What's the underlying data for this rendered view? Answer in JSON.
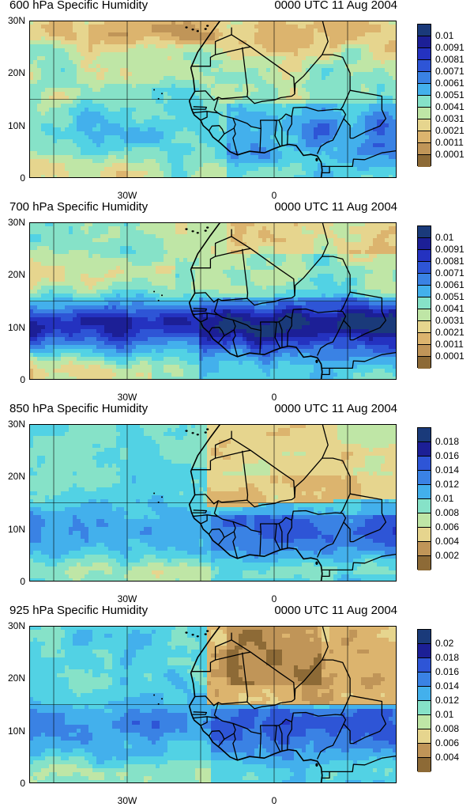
{
  "panels": [
    {
      "title": "600 hPa Specific Humidity",
      "time": "0000 UTC 11 Aug 2004",
      "ylabels": [
        "30N",
        "20N",
        "10N",
        "0"
      ],
      "xlabels": [
        "30W",
        "0"
      ],
      "colorbar": [
        "0.01",
        "0.0091",
        "0.0081",
        "0.0071",
        "0.0061",
        "0.0051",
        "0.0041",
        "0.0031",
        "0.0021",
        "0.0011",
        "0.0001"
      ]
    },
    {
      "title": "700 hPa Specific Humidity",
      "time": "0000 UTC 11 Aug 2004",
      "ylabels": [
        "30N",
        "20N",
        "10N",
        "0"
      ],
      "xlabels": [
        "30W",
        "0"
      ],
      "colorbar": [
        "0.01",
        "0.0091",
        "0.0081",
        "0.0071",
        "0.0061",
        "0.0051",
        "0.0041",
        "0.0031",
        "0.0021",
        "0.0011",
        "0.0001"
      ]
    },
    {
      "title": "850 hPa Specific Humidity",
      "time": "0000 UTC 11 Aug 2004",
      "ylabels": [
        "30N",
        "20N",
        "10N",
        "0"
      ],
      "xlabels": [
        "30W",
        "0"
      ],
      "colorbar": [
        "0.018",
        "0.016",
        "0.014",
        "0.012",
        "0.01",
        "0.008",
        "0.006",
        "0.004",
        "0.002"
      ]
    },
    {
      "title": "925 hPa Specific Humidity",
      "time": "0000 UTC 11 Aug 2004",
      "ylabels": [
        "30N",
        "20N",
        "10N",
        "0"
      ],
      "xlabels": [
        "30W",
        "0"
      ],
      "colorbar": [
        "0.02",
        "0.018",
        "0.016",
        "0.014",
        "0.012",
        "0.01",
        "0.008",
        "0.006",
        "0.004"
      ]
    }
  ],
  "palette": [
    "#1a3a7a",
    "#1c1f96",
    "#2432c0",
    "#2e55d6",
    "#3a82e4",
    "#43b0ec",
    "#52d2e4",
    "#86e2c8",
    "#bfe6a6",
    "#e6d58e",
    "#dcb46e",
    "#c09558",
    "#8d6a36"
  ],
  "map_region": "West Africa & tropical Atlantic, 50W-25E, 0-30N"
}
